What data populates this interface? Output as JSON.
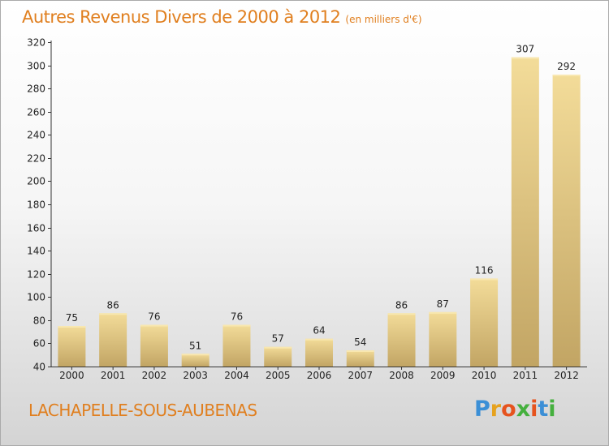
{
  "header": {
    "title": "Autres Revenus Divers de 2000 à 2012",
    "unit": "(en milliers d'€)"
  },
  "footer": {
    "commune": "LACHAPELLE-SOUS-AUBENAS"
  },
  "brand": {
    "letters": [
      "P",
      "r",
      "o",
      "x",
      "i",
      "t",
      "i"
    ],
    "colors": [
      "#3b8fd6",
      "#e6a21e",
      "#e6531e",
      "#45b03e",
      "#e6531e",
      "#3b8fd6",
      "#45b03e"
    ]
  },
  "chart_data": {
    "type": "bar",
    "title": "Autres Revenus Divers de 2000 à 2012",
    "xlabel": "",
    "ylabel": "",
    "categories": [
      "2000",
      "2001",
      "2002",
      "2003",
      "2004",
      "2005",
      "2006",
      "2007",
      "2008",
      "2009",
      "2010",
      "2011",
      "2012"
    ],
    "values": [
      75,
      86,
      76,
      51,
      76,
      57,
      64,
      54,
      86,
      87,
      116,
      307,
      292
    ],
    "ylim": [
      40,
      320
    ],
    "yticks": [
      40,
      60,
      80,
      100,
      120,
      140,
      160,
      180,
      200,
      220,
      240,
      260,
      280,
      300,
      320
    ],
    "grid": false,
    "colors": {
      "bar_light": "#f3dc99",
      "bar_dark": "#c2a564",
      "axis": "#333333",
      "label": "#222222"
    }
  }
}
